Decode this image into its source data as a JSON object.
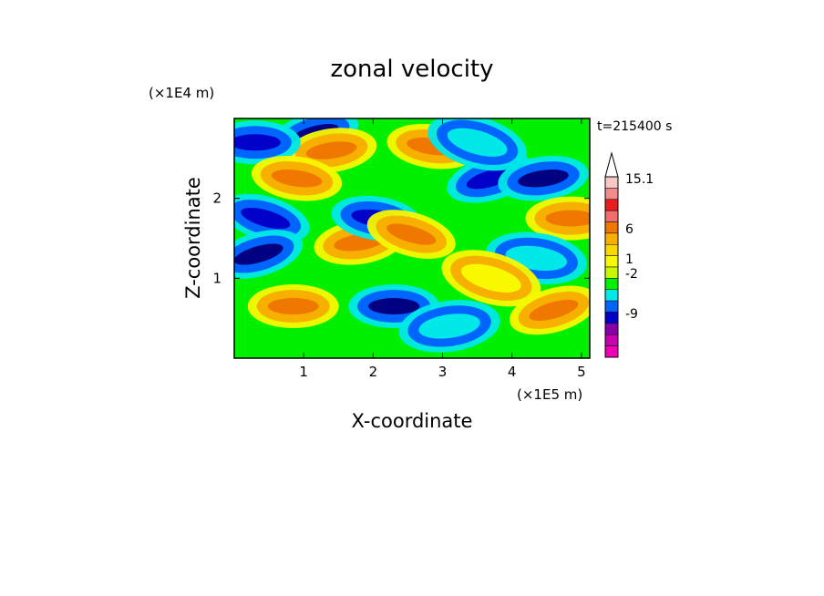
{
  "chart_data": {
    "type": "heatmap",
    "title": "zonal velocity",
    "xlabel": "X-coordinate",
    "ylabel": "Z-coordinate",
    "x_unit": "(×1E5 m)",
    "y_unit": "(×1E4 m)",
    "time_label": "t=215400 s",
    "x_ticks": [
      1,
      2,
      3,
      4,
      5
    ],
    "y_ticks": [
      1,
      2
    ],
    "xlim": [
      0.0,
      5.12
    ],
    "ylim": [
      0.0,
      3.0
    ],
    "colorbar": {
      "levels": [
        {
          "color": "#ffffff",
          "shape": "triangle"
        },
        {
          "color": "#f7c8c8"
        },
        {
          "color": "#f28c8c"
        },
        {
          "color": "#e81e1e"
        },
        {
          "color": "#f06e6e"
        },
        {
          "color": "#f07800"
        },
        {
          "color": "#f8b000"
        },
        {
          "color": "#f8d800"
        },
        {
          "color": "#f8f800"
        },
        {
          "color": "#c8f800"
        },
        {
          "color": "#00f000"
        },
        {
          "color": "#00e8e8"
        },
        {
          "color": "#0064ff"
        },
        {
          "color": "#0000c8"
        },
        {
          "color": "#8800a8"
        },
        {
          "color": "#c800b0"
        },
        {
          "color": "#f000b4"
        }
      ],
      "labels": [
        "15.1",
        "6",
        "1",
        "-2",
        "-9"
      ]
    },
    "features": [
      {
        "x": 1.15,
        "z": 2.8,
        "value": -12
      },
      {
        "x": 1.4,
        "z": 2.6,
        "value": 6
      },
      {
        "x": 0.3,
        "z": 2.7,
        "value": -9
      },
      {
        "x": 0.9,
        "z": 2.25,
        "value": 6
      },
      {
        "x": 0.45,
        "z": 1.75,
        "value": -9
      },
      {
        "x": 0.35,
        "z": 1.3,
        "value": -12
      },
      {
        "x": 1.8,
        "z": 1.45,
        "value": 6
      },
      {
        "x": 2.3,
        "z": 0.65,
        "value": -12
      },
      {
        "x": 2.05,
        "z": 1.75,
        "value": -9
      },
      {
        "x": 2.55,
        "z": 1.55,
        "value": 6
      },
      {
        "x": 3.7,
        "z": 2.25,
        "value": -9
      },
      {
        "x": 4.45,
        "z": 2.25,
        "value": -12
      },
      {
        "x": 4.85,
        "z": 1.75,
        "value": 6
      },
      {
        "x": 4.35,
        "z": 1.25,
        "value": -2
      },
      {
        "x": 3.7,
        "z": 1.0,
        "value": 1
      },
      {
        "x": 4.6,
        "z": 0.6,
        "value": 6
      },
      {
        "x": 3.1,
        "z": 0.4,
        "value": -2
      },
      {
        "x": 0.85,
        "z": 0.65,
        "value": 6
      },
      {
        "x": 2.85,
        "z": 2.65,
        "value": 6
      },
      {
        "x": 3.5,
        "z": 2.7,
        "value": -2
      }
    ]
  }
}
